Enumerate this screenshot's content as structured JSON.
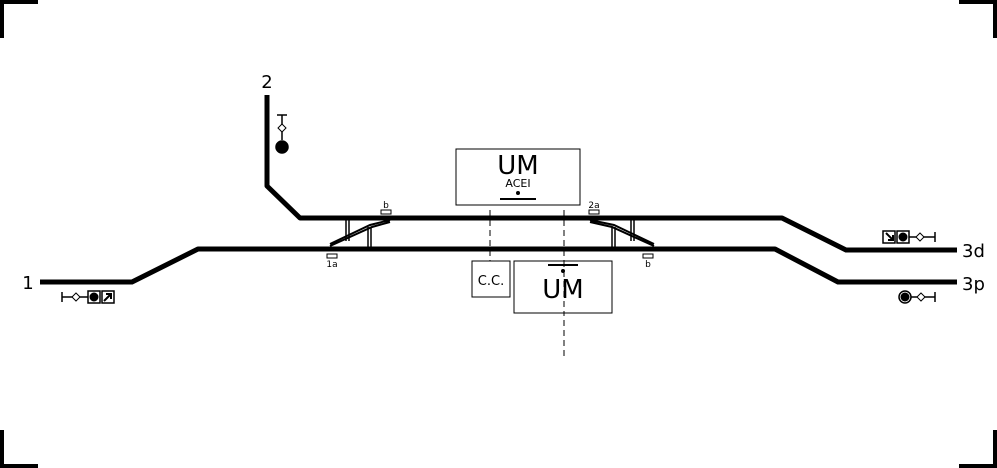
{
  "diagram": {
    "track_labels": {
      "line_1": "1",
      "line_2": "2",
      "line_3d": "3d",
      "line_3p": "3p"
    },
    "switch_labels": {
      "b_left": "b",
      "one_a": "1a",
      "two_a": "2a",
      "b_right": "b"
    },
    "buildings": {
      "um_top_title": "UM",
      "um_top_subtitle": "ACEI",
      "um_bottom_title": "UM",
      "cc_label": "C.C."
    },
    "colors": {
      "track": "#000000",
      "background": "#ffffff"
    }
  }
}
